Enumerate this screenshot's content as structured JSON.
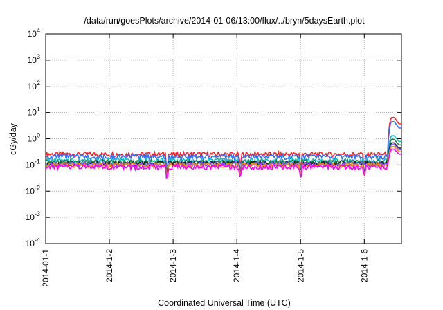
{
  "chart_data": {
    "type": "line",
    "title": "/data/run/goesPlots/archive/2014-01-06/13:00/flux/../bryn/5daysEarth.plot",
    "xlabel": "Coordinated Universal Time (UTC)",
    "ylabel": "cGy/day",
    "yscale": "log",
    "ylim": [
      0.0001,
      10000
    ],
    "xlim": [
      "2014-01-01",
      "2014-01-06 14:00"
    ],
    "grid": true,
    "x_ticks": [
      "2014-01-1",
      "2014-1-2",
      "2014-1-3",
      "2014-1-4",
      "2014-1-5",
      "2014-1-6"
    ],
    "y_ticks": [
      {
        "value": 0.0001,
        "base": "10",
        "exp": "-4"
      },
      {
        "value": 0.001,
        "base": "10",
        "exp": "-3"
      },
      {
        "value": 0.01,
        "base": "10",
        "exp": "-2"
      },
      {
        "value": 0.1,
        "base": "10",
        "exp": "-1"
      },
      {
        "value": 1,
        "base": "10",
        "exp": "0"
      },
      {
        "value": 10,
        "base": "10",
        "exp": "1"
      },
      {
        "value": 100,
        "base": "10",
        "exp": "2"
      },
      {
        "value": 1000,
        "base": "10",
        "exp": "3"
      },
      {
        "value": 10000,
        "base": "10",
        "exp": "4"
      }
    ],
    "series": [
      {
        "color": "#ff2020",
        "baseline": 0.26,
        "spike_peak": 6.5
      },
      {
        "color": "#3070ff",
        "baseline": 0.21,
        "spike_peak": 4.5
      },
      {
        "color": "#10c0c0",
        "baseline": 0.15,
        "spike_peak": 1.3
      },
      {
        "color": "#208040",
        "baseline": 0.13,
        "spike_peak": 0.95
      },
      {
        "color": "#202020",
        "baseline": 0.115,
        "spike_peak": 0.7
      },
      {
        "color": "#8050ff",
        "baseline": 0.108,
        "spike_peak": 0.6
      },
      {
        "color": "#f09000",
        "baseline": 0.1,
        "spike_peak": 0.5
      },
      {
        "color": "#ff00ff",
        "baseline": 0.085,
        "spike_peak": 0.4
      }
    ]
  }
}
